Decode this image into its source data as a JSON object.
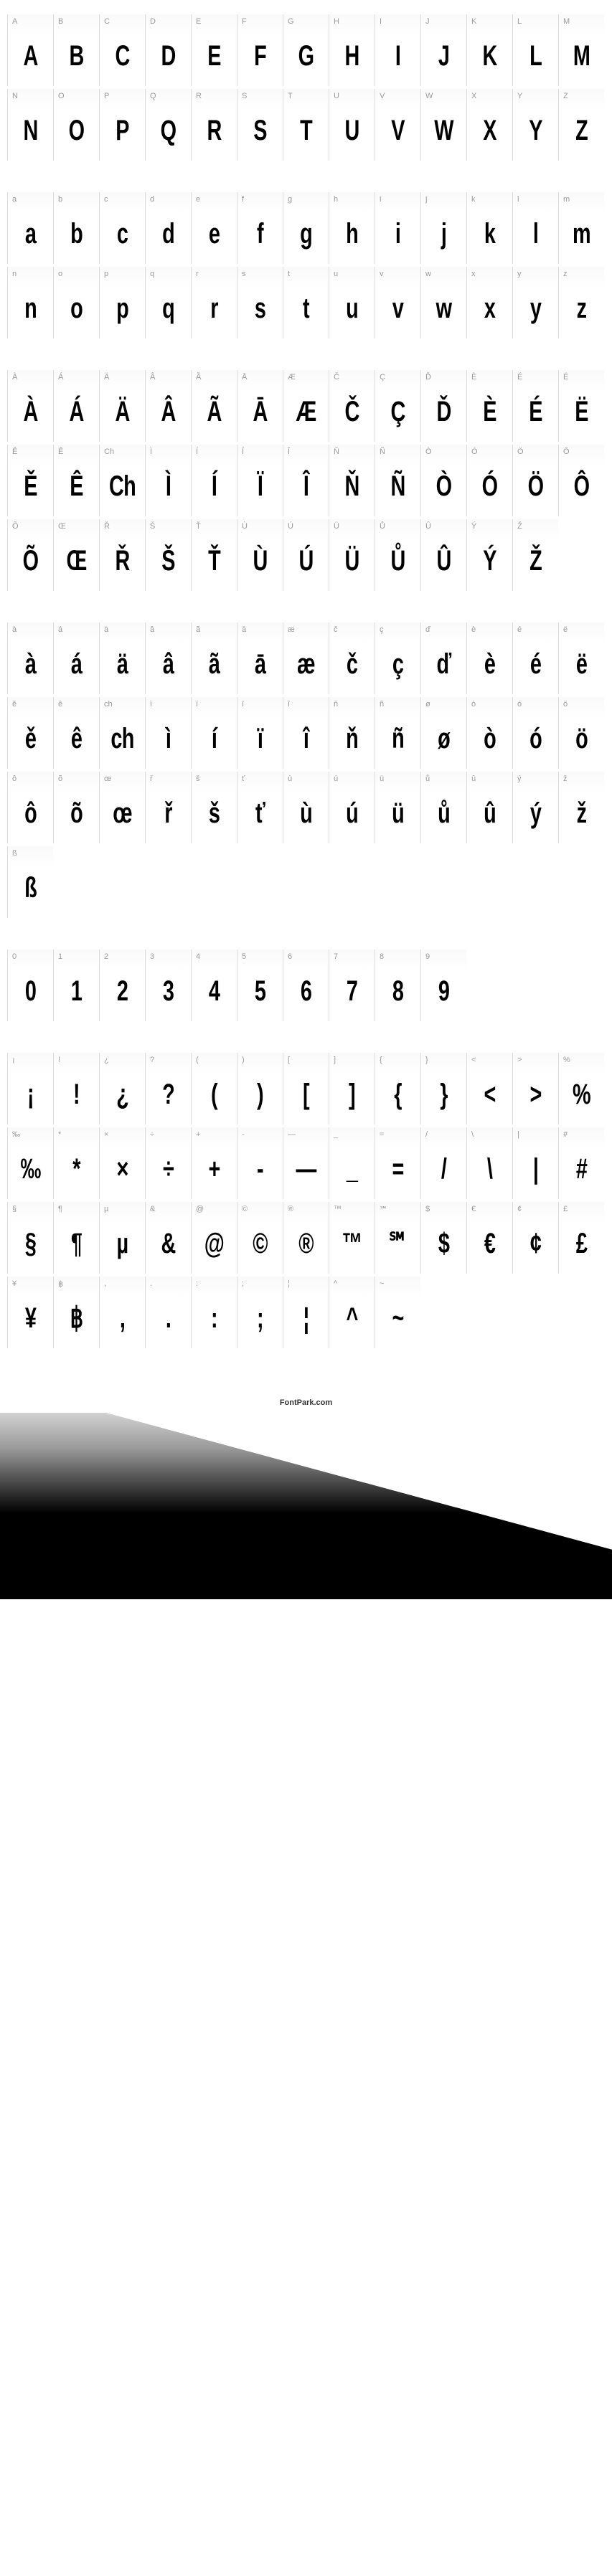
{
  "footer_text": "FontPark.com",
  "sections": [
    {
      "name": "uppercase",
      "cells": [
        {
          "label": "A",
          "glyph": "A"
        },
        {
          "label": "B",
          "glyph": "B"
        },
        {
          "label": "C",
          "glyph": "C"
        },
        {
          "label": "D",
          "glyph": "D"
        },
        {
          "label": "E",
          "glyph": "E"
        },
        {
          "label": "F",
          "glyph": "F"
        },
        {
          "label": "G",
          "glyph": "G"
        },
        {
          "label": "H",
          "glyph": "H"
        },
        {
          "label": "I",
          "glyph": "I"
        },
        {
          "label": "J",
          "glyph": "J"
        },
        {
          "label": "K",
          "glyph": "K"
        },
        {
          "label": "L",
          "glyph": "L"
        },
        {
          "label": "M",
          "glyph": "M"
        },
        {
          "label": "N",
          "glyph": "N"
        },
        {
          "label": "O",
          "glyph": "O"
        },
        {
          "label": "P",
          "glyph": "P"
        },
        {
          "label": "Q",
          "glyph": "Q"
        },
        {
          "label": "R",
          "glyph": "R"
        },
        {
          "label": "S",
          "glyph": "S"
        },
        {
          "label": "T",
          "glyph": "T"
        },
        {
          "label": "U",
          "glyph": "U"
        },
        {
          "label": "V",
          "glyph": "V"
        },
        {
          "label": "W",
          "glyph": "W"
        },
        {
          "label": "X",
          "glyph": "X"
        },
        {
          "label": "Y",
          "glyph": "Y"
        },
        {
          "label": "Z",
          "glyph": "Z"
        }
      ]
    },
    {
      "name": "lowercase",
      "cells": [
        {
          "label": "a",
          "glyph": "a"
        },
        {
          "label": "b",
          "glyph": "b"
        },
        {
          "label": "c",
          "glyph": "c"
        },
        {
          "label": "d",
          "glyph": "d"
        },
        {
          "label": "e",
          "glyph": "e"
        },
        {
          "label": "f",
          "glyph": "f"
        },
        {
          "label": "g",
          "glyph": "g"
        },
        {
          "label": "h",
          "glyph": "h"
        },
        {
          "label": "i",
          "glyph": "i"
        },
        {
          "label": "j",
          "glyph": "j"
        },
        {
          "label": "k",
          "glyph": "k"
        },
        {
          "label": "l",
          "glyph": "l"
        },
        {
          "label": "m",
          "glyph": "m"
        },
        {
          "label": "n",
          "glyph": "n"
        },
        {
          "label": "o",
          "glyph": "o"
        },
        {
          "label": "p",
          "glyph": "p"
        },
        {
          "label": "q",
          "glyph": "q"
        },
        {
          "label": "r",
          "glyph": "r"
        },
        {
          "label": "s",
          "glyph": "s"
        },
        {
          "label": "t",
          "glyph": "t"
        },
        {
          "label": "u",
          "glyph": "u"
        },
        {
          "label": "v",
          "glyph": "v"
        },
        {
          "label": "w",
          "glyph": "w"
        },
        {
          "label": "x",
          "glyph": "x"
        },
        {
          "label": "y",
          "glyph": "y"
        },
        {
          "label": "z",
          "glyph": "z"
        }
      ]
    },
    {
      "name": "accented-upper",
      "cells": [
        {
          "label": "À",
          "glyph": "À"
        },
        {
          "label": "Á",
          "glyph": "Á"
        },
        {
          "label": "Ä",
          "glyph": "Ä"
        },
        {
          "label": "Â",
          "glyph": "Â"
        },
        {
          "label": "Ã",
          "glyph": "Ã"
        },
        {
          "label": "Ā",
          "glyph": "Ā"
        },
        {
          "label": "Æ",
          "glyph": "Æ"
        },
        {
          "label": "Č",
          "glyph": "Č"
        },
        {
          "label": "Ç",
          "glyph": "Ç"
        },
        {
          "label": "Ď",
          "glyph": "Ď"
        },
        {
          "label": "È",
          "glyph": "È"
        },
        {
          "label": "É",
          "glyph": "É"
        },
        {
          "label": "Ë",
          "glyph": "Ë"
        },
        {
          "label": "Ě",
          "glyph": "Ě"
        },
        {
          "label": "Ê",
          "glyph": "Ê"
        },
        {
          "label": "Ch",
          "glyph": "Ch"
        },
        {
          "label": "Ì",
          "glyph": "Ì"
        },
        {
          "label": "Í",
          "glyph": "Í"
        },
        {
          "label": "Ï",
          "glyph": "Ï"
        },
        {
          "label": "Î",
          "glyph": "Î"
        },
        {
          "label": "Ň",
          "glyph": "Ň"
        },
        {
          "label": "Ñ",
          "glyph": "Ñ"
        },
        {
          "label": "Ò",
          "glyph": "Ò"
        },
        {
          "label": "Ó",
          "glyph": "Ó"
        },
        {
          "label": "Ö",
          "glyph": "Ö"
        },
        {
          "label": "Ô",
          "glyph": "Ô"
        },
        {
          "label": "Õ",
          "glyph": "Õ"
        },
        {
          "label": "Œ",
          "glyph": "Œ"
        },
        {
          "label": "Ř",
          "glyph": "Ř"
        },
        {
          "label": "Š",
          "glyph": "Š"
        },
        {
          "label": "Ť",
          "glyph": "Ť"
        },
        {
          "label": "Ù",
          "glyph": "Ù"
        },
        {
          "label": "Ú",
          "glyph": "Ú"
        },
        {
          "label": "Ü",
          "glyph": "Ü"
        },
        {
          "label": "Ů",
          "glyph": "Ů"
        },
        {
          "label": "Û",
          "glyph": "Û"
        },
        {
          "label": "Ý",
          "glyph": "Ý"
        },
        {
          "label": "Ž",
          "glyph": "Ž"
        }
      ]
    },
    {
      "name": "accented-lower",
      "cells": [
        {
          "label": "à",
          "glyph": "à"
        },
        {
          "label": "á",
          "glyph": "á"
        },
        {
          "label": "ä",
          "glyph": "ä"
        },
        {
          "label": "â",
          "glyph": "â"
        },
        {
          "label": "ã",
          "glyph": "ã"
        },
        {
          "label": "ā",
          "glyph": "ā"
        },
        {
          "label": "æ",
          "glyph": "æ"
        },
        {
          "label": "č",
          "glyph": "č"
        },
        {
          "label": "ç",
          "glyph": "ç"
        },
        {
          "label": "ď",
          "glyph": "ď"
        },
        {
          "label": "è",
          "glyph": "è"
        },
        {
          "label": "é",
          "glyph": "é"
        },
        {
          "label": "ë",
          "glyph": "ë"
        },
        {
          "label": "ě",
          "glyph": "ě"
        },
        {
          "label": "ê",
          "glyph": "ê"
        },
        {
          "label": "ch",
          "glyph": "ch"
        },
        {
          "label": "ì",
          "glyph": "ì"
        },
        {
          "label": "í",
          "glyph": "í"
        },
        {
          "label": "ï",
          "glyph": "ï"
        },
        {
          "label": "î",
          "glyph": "î"
        },
        {
          "label": "ň",
          "glyph": "ň"
        },
        {
          "label": "ñ",
          "glyph": "ñ"
        },
        {
          "label": "ø",
          "glyph": "ø"
        },
        {
          "label": "ò",
          "glyph": "ò"
        },
        {
          "label": "ó",
          "glyph": "ó"
        },
        {
          "label": "ö",
          "glyph": "ö"
        },
        {
          "label": "ô",
          "glyph": "ô"
        },
        {
          "label": "õ",
          "glyph": "õ"
        },
        {
          "label": "œ",
          "glyph": "œ"
        },
        {
          "label": "ř",
          "glyph": "ř"
        },
        {
          "label": "š",
          "glyph": "š"
        },
        {
          "label": "ť",
          "glyph": "ť"
        },
        {
          "label": "ù",
          "glyph": "ù"
        },
        {
          "label": "ú",
          "glyph": "ú"
        },
        {
          "label": "ü",
          "glyph": "ü"
        },
        {
          "label": "ů",
          "glyph": "ů"
        },
        {
          "label": "û",
          "glyph": "û"
        },
        {
          "label": "ý",
          "glyph": "ý"
        },
        {
          "label": "ž",
          "glyph": "ž"
        },
        {
          "label": "ß",
          "glyph": "ß"
        }
      ]
    },
    {
      "name": "digits",
      "cells": [
        {
          "label": "0",
          "glyph": "0"
        },
        {
          "label": "1",
          "glyph": "1"
        },
        {
          "label": "2",
          "glyph": "2"
        },
        {
          "label": "3",
          "glyph": "3"
        },
        {
          "label": "4",
          "glyph": "4"
        },
        {
          "label": "5",
          "glyph": "5"
        },
        {
          "label": "6",
          "glyph": "6"
        },
        {
          "label": "7",
          "glyph": "7"
        },
        {
          "label": "8",
          "glyph": "8"
        },
        {
          "label": "9",
          "glyph": "9"
        }
      ]
    },
    {
      "name": "symbols",
      "cells": [
        {
          "label": "¡",
          "glyph": "¡"
        },
        {
          "label": "!",
          "glyph": "!"
        },
        {
          "label": "¿",
          "glyph": "¿"
        },
        {
          "label": "?",
          "glyph": "?"
        },
        {
          "label": "(",
          "glyph": "("
        },
        {
          "label": ")",
          "glyph": ")"
        },
        {
          "label": "[",
          "glyph": "["
        },
        {
          "label": "]",
          "glyph": "]"
        },
        {
          "label": "{",
          "glyph": "{"
        },
        {
          "label": "}",
          "glyph": "}"
        },
        {
          "label": "<",
          "glyph": "<"
        },
        {
          "label": ">",
          "glyph": ">"
        },
        {
          "label": "%",
          "glyph": "%"
        },
        {
          "label": "‰",
          "glyph": "‰"
        },
        {
          "label": "*",
          "glyph": "*"
        },
        {
          "label": "×",
          "glyph": "×"
        },
        {
          "label": "÷",
          "glyph": "÷"
        },
        {
          "label": "+",
          "glyph": "+"
        },
        {
          "label": "-",
          "glyph": "-"
        },
        {
          "label": "—",
          "glyph": "—"
        },
        {
          "label": "_",
          "glyph": "_"
        },
        {
          "label": "=",
          "glyph": "="
        },
        {
          "label": "/",
          "glyph": "/"
        },
        {
          "label": "\\",
          "glyph": "\\"
        },
        {
          "label": "|",
          "glyph": "|"
        },
        {
          "label": "#",
          "glyph": "#"
        },
        {
          "label": "§",
          "glyph": "§"
        },
        {
          "label": "¶",
          "glyph": "¶"
        },
        {
          "label": "µ",
          "glyph": "µ"
        },
        {
          "label": "&",
          "glyph": "&"
        },
        {
          "label": "@",
          "glyph": "@"
        },
        {
          "label": "©",
          "glyph": "©"
        },
        {
          "label": "®",
          "glyph": "®"
        },
        {
          "label": "™",
          "glyph": "™"
        },
        {
          "label": "℠",
          "glyph": "℠"
        },
        {
          "label": "$",
          "glyph": "$"
        },
        {
          "label": "€",
          "glyph": "€"
        },
        {
          "label": "¢",
          "glyph": "¢"
        },
        {
          "label": "£",
          "glyph": "£"
        },
        {
          "label": "¥",
          "glyph": "¥"
        },
        {
          "label": "฿",
          "glyph": "฿"
        },
        {
          "label": ",",
          "glyph": ","
        },
        {
          "label": ".",
          "glyph": "."
        },
        {
          "label": ":",
          "glyph": ":"
        },
        {
          "label": ";",
          "glyph": ";"
        },
        {
          "label": "¦",
          "glyph": "¦"
        },
        {
          "label": "^",
          "glyph": "^"
        },
        {
          "label": "~",
          "glyph": "~"
        }
      ]
    }
  ]
}
